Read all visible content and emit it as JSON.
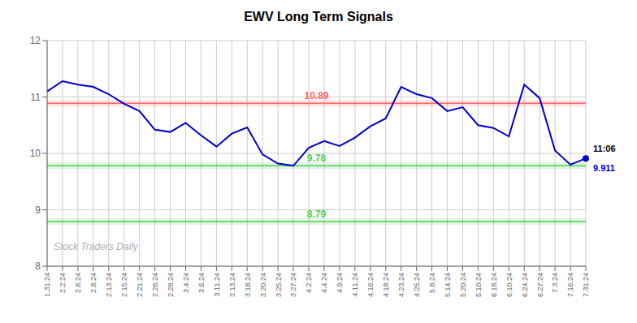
{
  "chart_data": {
    "type": "line",
    "title": "EWV Long Term Signals",
    "categories": [
      "1.31.24",
      "2.2.24",
      "2.6.24",
      "2.8.24",
      "2.13.24",
      "2.15.24",
      "2.21.24",
      "2.26.24",
      "2.28.24",
      "3.4.24",
      "3.6.24",
      "3.11.24",
      "3.13.24",
      "3.18.24",
      "3.20.24",
      "3.25.24",
      "3.27.24",
      "4.2.24",
      "4.4.24",
      "4.9.24",
      "4.11.24",
      "4.16.24",
      "4.18.24",
      "4.23.24",
      "4.25.24",
      "5.8.24",
      "5.14.24",
      "5.20.24",
      "5.10.24",
      "6.18.24",
      "6.10.24",
      "6.24.24",
      "6.27.24",
      "7.3.24",
      "7.16.24",
      "7.31.24"
    ],
    "values": [
      11.1,
      11.28,
      11.22,
      11.18,
      11.05,
      10.88,
      10.75,
      10.42,
      10.38,
      10.54,
      10.32,
      10.12,
      10.35,
      10.46,
      9.98,
      9.82,
      9.78,
      10.1,
      10.22,
      10.13,
      10.28,
      10.48,
      10.62,
      11.18,
      11.05,
      10.98,
      10.75,
      10.82,
      10.5,
      10.45,
      10.3,
      11.22,
      10.98,
      10.05,
      9.8,
      9.911
    ],
    "color": "#0000cc",
    "ylim": [
      8.0,
      12.0
    ],
    "yticks": [
      8,
      9,
      10,
      11,
      12
    ],
    "grid": true,
    "reference_lines": [
      {
        "value": 10.89,
        "label": "10.89",
        "color": "#ff6666"
      },
      {
        "value": 9.78,
        "label": "9.78",
        "color": "#55cc55"
      },
      {
        "value": 8.79,
        "label": "8.79",
        "color": "#55cc55"
      }
    ],
    "annotations": [
      {
        "text": "11:06",
        "x": "7.31.24",
        "y": 9.911
      },
      {
        "text": "9.911",
        "x": "7.31.24",
        "y": 9.911
      },
      {
        "text": "Stock Traders Daily"
      }
    ]
  }
}
